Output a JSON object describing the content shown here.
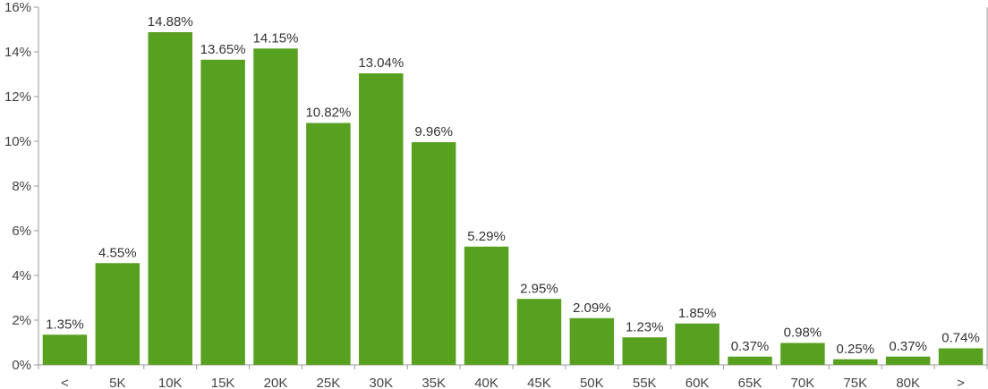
{
  "colors": {
    "bar": "#58a020",
    "axis": "#9a9a9a",
    "text": "#444444"
  },
  "chart_data": {
    "type": "bar",
    "categories": [
      "<",
      "5K",
      "10K",
      "15K",
      "20K",
      "25K",
      "30K",
      "35K",
      "40K",
      "45K",
      "50K",
      "55K",
      "60K",
      "65K",
      "70K",
      "75K",
      "80K",
      ">"
    ],
    "values": [
      1.35,
      4.55,
      14.88,
      13.65,
      14.15,
      10.82,
      13.04,
      9.96,
      5.29,
      2.95,
      2.09,
      1.23,
      1.85,
      0.37,
      0.98,
      0.25,
      0.37,
      0.74
    ],
    "data_labels": [
      "1.35%",
      "4.55%",
      "14.88%",
      "13.65%",
      "14.15%",
      "10.82%",
      "13.04%",
      "9.96%",
      "5.29%",
      "2.95%",
      "2.09%",
      "1.23%",
      "1.85%",
      "0.37%",
      "0.98%",
      "0.25%",
      "0.37%",
      "0.74%"
    ],
    "y_ticks": [
      0,
      2,
      4,
      6,
      8,
      10,
      12,
      14,
      16
    ],
    "y_tick_labels": [
      "0%",
      "2%",
      "4%",
      "6%",
      "8%",
      "10%",
      "12%",
      "14%",
      "16%"
    ],
    "ylim": [
      0,
      16
    ],
    "grid": false,
    "legend": "none"
  }
}
